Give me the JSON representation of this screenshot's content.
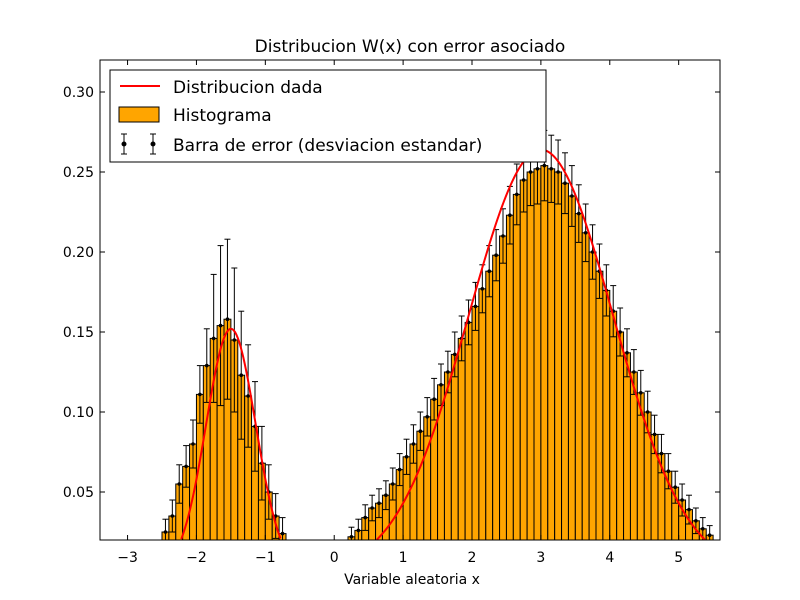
{
  "chart_data": {
    "type": "bar",
    "title": "Distribucion W(x) con error asociado",
    "xlabel": "Variable aleatoria x",
    "ylabel": "",
    "xlim": [
      -3.4,
      5.6
    ],
    "ylim": [
      0.02,
      0.32
    ],
    "grid": false,
    "legend_position": "top-left",
    "xticks": [
      -3,
      -2,
      -1,
      0,
      1,
      2,
      3,
      4,
      5
    ],
    "xtick_labels": [
      "−3",
      "−2",
      "−1",
      "0",
      "1",
      "2",
      "3",
      "4",
      "5"
    ],
    "yticks": [
      0.05,
      0.1,
      0.15,
      0.2,
      0.25,
      0.3
    ],
    "ytick_labels": [
      "0.05",
      "0.10",
      "0.15",
      "0.20",
      "0.25",
      "0.30"
    ],
    "legend": [
      {
        "label": "Distribucion dada",
        "kind": "line"
      },
      {
        "label": "Histograma",
        "kind": "patch"
      },
      {
        "label": "Barra de error (desviacion estandar)",
        "kind": "errorbar"
      }
    ],
    "colors": {
      "histogram": "#FFA500",
      "curve": "#FF0000",
      "errorbar": "#000000",
      "edge": "#000000"
    },
    "histogram": {
      "name": "Histograma",
      "bin_width": 0.1,
      "left_x": [
        -2.55,
        -2.45,
        -2.35,
        -2.25,
        -2.15,
        -2.05,
        -1.95,
        -1.85,
        -1.75,
        -1.65,
        -1.55,
        -1.45,
        -1.35,
        -1.25,
        -1.15,
        -1.05,
        -0.95,
        -0.85,
        -0.75,
        -0.65
      ],
      "left_values": [
        0.018,
        0.025,
        0.035,
        0.055,
        0.066,
        0.08,
        0.111,
        0.129,
        0.146,
        0.154,
        0.158,
        0.145,
        0.123,
        0.11,
        0.091,
        0.068,
        0.05,
        0.035,
        0.024,
        0.015
      ],
      "left_errors": [
        0.006,
        0.008,
        0.01,
        0.012,
        0.013,
        0.015,
        0.018,
        0.023,
        0.04,
        0.05,
        0.05,
        0.045,
        0.04,
        0.032,
        0.028,
        0.023,
        0.017,
        0.014,
        0.01,
        0.008
      ],
      "right_x": [
        0.05,
        0.15,
        0.25,
        0.35,
        0.45,
        0.55,
        0.65,
        0.75,
        0.85,
        0.95,
        1.05,
        1.15,
        1.25,
        1.35,
        1.45,
        1.55,
        1.65,
        1.75,
        1.85,
        1.95,
        2.05,
        2.15,
        2.25,
        2.35,
        2.45,
        2.55,
        2.65,
        2.75,
        2.85,
        2.95,
        3.05,
        3.15,
        3.25,
        3.35,
        3.45,
        3.55,
        3.65,
        3.75,
        3.85,
        3.95,
        4.05,
        4.15,
        4.25,
        4.35,
        4.45,
        4.55,
        4.65,
        4.75,
        4.85,
        4.95,
        5.05,
        5.15,
        5.25,
        5.35,
        5.45,
        5.55
      ],
      "right_values": [
        0.012,
        0.018,
        0.022,
        0.026,
        0.034,
        0.04,
        0.043,
        0.048,
        0.055,
        0.064,
        0.072,
        0.08,
        0.088,
        0.097,
        0.108,
        0.117,
        0.125,
        0.136,
        0.146,
        0.156,
        0.166,
        0.177,
        0.188,
        0.198,
        0.21,
        0.223,
        0.236,
        0.245,
        0.25,
        0.252,
        0.254,
        0.252,
        0.25,
        0.243,
        0.235,
        0.224,
        0.212,
        0.2,
        0.188,
        0.176,
        0.163,
        0.15,
        0.137,
        0.125,
        0.112,
        0.1,
        0.086,
        0.074,
        0.063,
        0.053,
        0.045,
        0.039,
        0.032,
        0.027,
        0.023,
        0.019
      ],
      "right_errors": [
        0.004,
        0.005,
        0.006,
        0.007,
        0.008,
        0.008,
        0.009,
        0.009,
        0.01,
        0.01,
        0.011,
        0.012,
        0.012,
        0.012,
        0.013,
        0.013,
        0.013,
        0.014,
        0.014,
        0.014,
        0.015,
        0.015,
        0.016,
        0.016,
        0.017,
        0.018,
        0.019,
        0.02,
        0.021,
        0.022,
        0.022,
        0.021,
        0.02,
        0.019,
        0.019,
        0.018,
        0.018,
        0.017,
        0.017,
        0.016,
        0.016,
        0.015,
        0.015,
        0.014,
        0.014,
        0.013,
        0.012,
        0.012,
        0.011,
        0.01,
        0.01,
        0.009,
        0.008,
        0.007,
        0.006,
        0.005
      ]
    },
    "curve": {
      "name": "Distribucion dada",
      "components": [
        {
          "weight": 0.152,
          "mean": -1.5,
          "sd": 0.36
        },
        {
          "weight": 0.264,
          "mean": 3.0,
          "sd": 1.05
        }
      ]
    }
  }
}
